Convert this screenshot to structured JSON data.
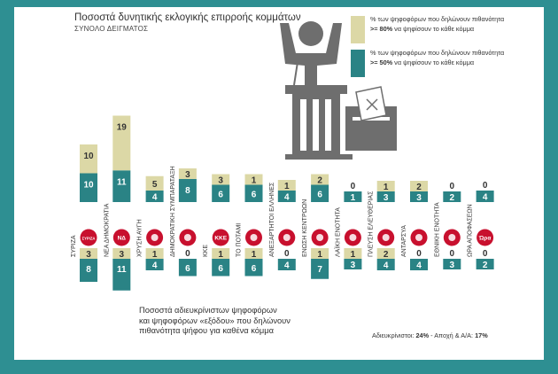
{
  "header": {
    "title": "Ποσοστά δυνητικής εκλογικής επιρροής κομμάτων",
    "subtitle": "ΣΥΝΟΛΟ ΔΕΙΓΜΑΤΟΣ"
  },
  "legend": {
    "high": {
      "text_before": "% των ψηφοφόρων που δηλώνουν πιθανότητα ",
      "bold": ">= 80%",
      "text_after": " να ψηφίσουν το κάθε κόμμα",
      "color": "#dcd8a6"
    },
    "mid": {
      "text_before": "% των ψηφοφόρων που δηλώνουν πιθανότητα ",
      "bold": ">= 50%",
      "text_after": " να ψηφίσουν το κάθε κόμμα",
      "color": "#2a8385"
    }
  },
  "bottom_note": {
    "line1": "Ποσοστά αδιευκρίνιστων ψηφοφόρων",
    "line2": "και ψηφοφόρων «εξόδου» που δηλώνουν",
    "line3": "πιθανότητα ψήφου για καθένα κόμμα"
  },
  "footer": {
    "undecided_label": "Αδιευκρίνιστοι: ",
    "undecided_value": "24%",
    "abstain_label": " - Αποχή & Α/Α: ",
    "abstain_value": "17%"
  },
  "chart_data": {
    "type": "bar",
    "title": "Ποσοστά δυνητικής εκλογικής επιρροής κομμάτων",
    "subtitle": "ΣΥΝΟΛΟ ΔΕΙΓΜΑΤΟΣ",
    "units": "%",
    "categories": [
      "ΣΥΡΙΖΑ",
      "ΝΕΑ ΔΗΜΟΚΡΑΤΙΑ",
      "ΧΡΥΣΗ ΑΥΓΗ",
      "ΔΗΜΟΚΡΑΤΙΚΗ ΣΥΜΠΑΡΑΤΑΞΗ",
      "ΚΚΕ",
      "ΤΟ ΠΟΤΑΜΙ",
      "ΑΝΕΞΑΡΤΗΤΟΙ ΕΛΛΗΝΕΣ",
      "ΕΝΩΣΗ ΚΕΝΤΡΩΩΝ",
      "ΛΑΪΚΗ ΕΝΟΤΗΤΑ",
      "ΠΛΕΥΣΗ ΕΛΕΥΘΕΡΙΑΣ",
      "ΑΝΤΑΡΣΥΑ",
      "ΕΘΝΙΚΗ ΕΝΟΤΗΤΑ",
      "ΩΡΑ ΑΠΟΦΑΣΕΩΝ"
    ],
    "logo_labels": [
      "ΣΥΡΙΖΑ",
      "ΝΔ",
      "",
      "",
      "ΚΚΕ",
      "",
      "",
      "",
      "",
      "",
      "",
      "",
      "Ώρα"
    ],
    "total_sample": {
      "series": [
        {
          "name": "% των ψηφοφόρων που δηλώνουν πιθανότητα >= 50% να ψηφίσουν το κάθε κόμμα",
          "values": [
            10,
            11,
            4,
            8,
            6,
            6,
            4,
            6,
            1,
            3,
            3,
            2,
            4
          ]
        },
        {
          "name": "% των ψηφοφόρων που δηλώνουν πιθανότητα >= 80% να ψηφίσουν το κάθε κόμμα",
          "values": [
            10,
            19,
            5,
            3,
            3,
            1,
            1,
            2,
            0,
            1,
            2,
            0,
            0
          ]
        }
      ]
    },
    "undecided_and_exit_voters": {
      "series": [
        {
          "name": "% των ψηφοφόρων που δηλώνουν πιθανότητα >= 80% να ψηφίσουν το κάθε κόμμα",
          "values": [
            3,
            3,
            1,
            0,
            1,
            1,
            0,
            1,
            1,
            2,
            0,
            0,
            0
          ]
        },
        {
          "name": "% των ψηφοφόρων που δηλώνουν πιθανότητα >= 50% να ψηφίσουν το κάθε κόμμα",
          "values": [
            8,
            11,
            4,
            6,
            6,
            6,
            4,
            7,
            3,
            4,
            4,
            3,
            2
          ]
        }
      ]
    },
    "colors": {
      "high": "#dcd8a6",
      "mid": "#2a8385",
      "logo": "#c8102e"
    }
  }
}
